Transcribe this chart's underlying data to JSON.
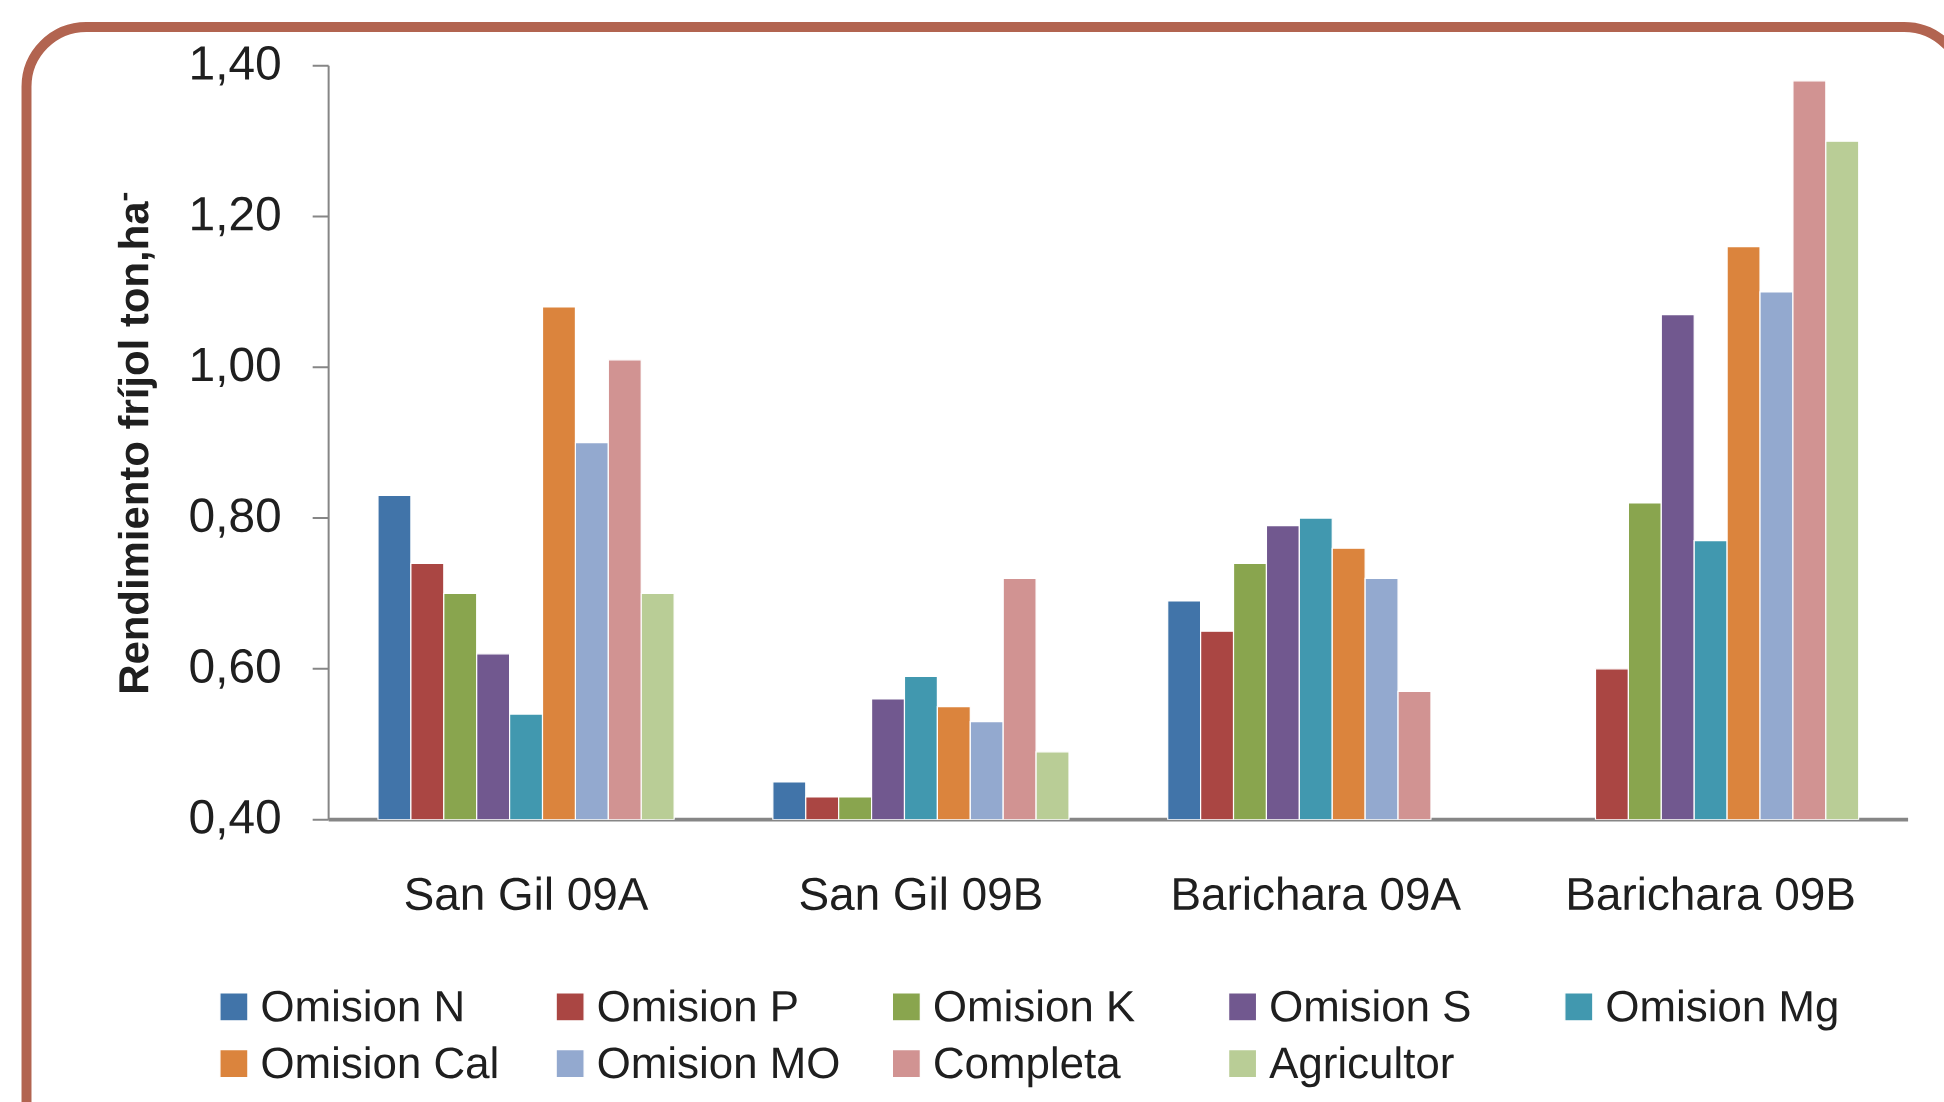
{
  "chart_data": {
    "type": "bar",
    "ylabel": "Rendimiento fríjol ton,ha$^{-}$",
    "categories": [
      "San Gil  09A",
      "San Gil 09B",
      "Barichara 09A",
      "Barichara 09B"
    ],
    "ylim": [
      0.4,
      1.4
    ],
    "yticks": [
      {
        "value": 0.4,
        "label": "0,40"
      },
      {
        "value": 0.6,
        "label": "0,60"
      },
      {
        "value": 0.8,
        "label": "0,80"
      },
      {
        "value": 1.0,
        "label": "1,00"
      },
      {
        "value": 1.2,
        "label": "1,20"
      },
      {
        "value": 1.4,
        "label": "1,40"
      }
    ],
    "legend": "bottom",
    "series": [
      {
        "name": "Omision N",
        "color": "#4174a9",
        "values": [
          0.83,
          0.45,
          0.69,
          null
        ]
      },
      {
        "name": "Omision P",
        "color": "#aa4643",
        "values": [
          0.74,
          0.43,
          0.65,
          0.6
        ]
      },
      {
        "name": "Omision K",
        "color": "#89a54e",
        "values": [
          0.7,
          0.43,
          0.74,
          0.82
        ]
      },
      {
        "name": "Omision S",
        "color": "#71588f",
        "values": [
          0.62,
          0.56,
          0.79,
          1.07
        ]
      },
      {
        "name": "Omision Mg",
        "color": "#4198af",
        "values": [
          0.54,
          0.59,
          0.8,
          0.77
        ]
      },
      {
        "name": "Omision Cal",
        "color": "#db843d",
        "values": [
          1.08,
          0.55,
          0.76,
          1.16
        ]
      },
      {
        "name": "Omision MO",
        "color": "#93a9cf",
        "values": [
          0.9,
          0.53,
          0.72,
          1.1
        ]
      },
      {
        "name": "Completa",
        "color": "#d19392",
        "values": [
          1.01,
          0.72,
          0.57,
          1.38
        ]
      },
      {
        "name": "Agricultor",
        "color": "#b9cd96",
        "values": [
          0.7,
          0.49,
          null,
          1.3
        ]
      }
    ]
  }
}
